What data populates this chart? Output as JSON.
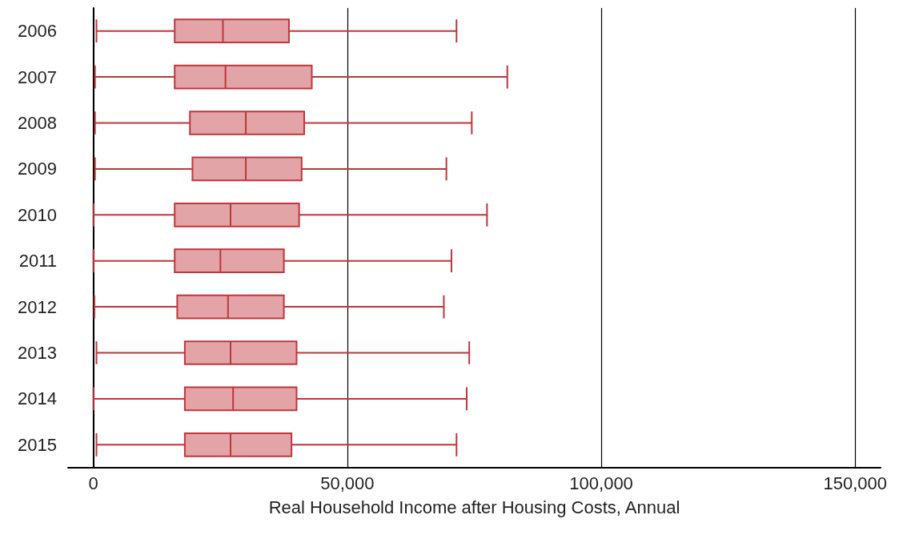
{
  "chart_data": {
    "type": "box",
    "orientation": "horizontal",
    "xlabel": "Real Household Income after Housing Costs, Annual",
    "categories": [
      "2006",
      "2007",
      "2008",
      "2009",
      "2010",
      "2011",
      "2012",
      "2013",
      "2014",
      "2015"
    ],
    "color": "#c0363c",
    "boxes": [
      {
        "low": 600,
        "q1": 16000,
        "median": 25500,
        "q3": 38500,
        "high": 71500
      },
      {
        "low": 300,
        "q1": 16000,
        "median": 26000,
        "q3": 43000,
        "high": 81500
      },
      {
        "low": 300,
        "q1": 19000,
        "median": 30000,
        "q3": 41500,
        "high": 74500
      },
      {
        "low": 300,
        "q1": 19500,
        "median": 30000,
        "q3": 41000,
        "high": 69500
      },
      {
        "low": 0,
        "q1": 16000,
        "median": 27000,
        "q3": 40500,
        "high": 77500
      },
      {
        "low": 0,
        "q1": 16000,
        "median": 25000,
        "q3": 37500,
        "high": 70500
      },
      {
        "low": 200,
        "q1": 16500,
        "median": 26500,
        "q3": 37500,
        "high": 69000
      },
      {
        "low": 600,
        "q1": 18000,
        "median": 27000,
        "q3": 40000,
        "high": 74000
      },
      {
        "low": 0,
        "q1": 18000,
        "median": 27500,
        "q3": 40000,
        "high": 73500
      },
      {
        "low": 600,
        "q1": 18000,
        "median": 27000,
        "q3": 39000,
        "high": 71500
      }
    ],
    "xlim": [
      -5000,
      155000
    ],
    "xticks": [
      0,
      {
        "value": 50000,
        "label": "50,000"
      },
      {
        "value": 100000,
        "label": "100,000"
      },
      {
        "value": 150000,
        "label": "150,000"
      }
    ],
    "grid": "x"
  }
}
